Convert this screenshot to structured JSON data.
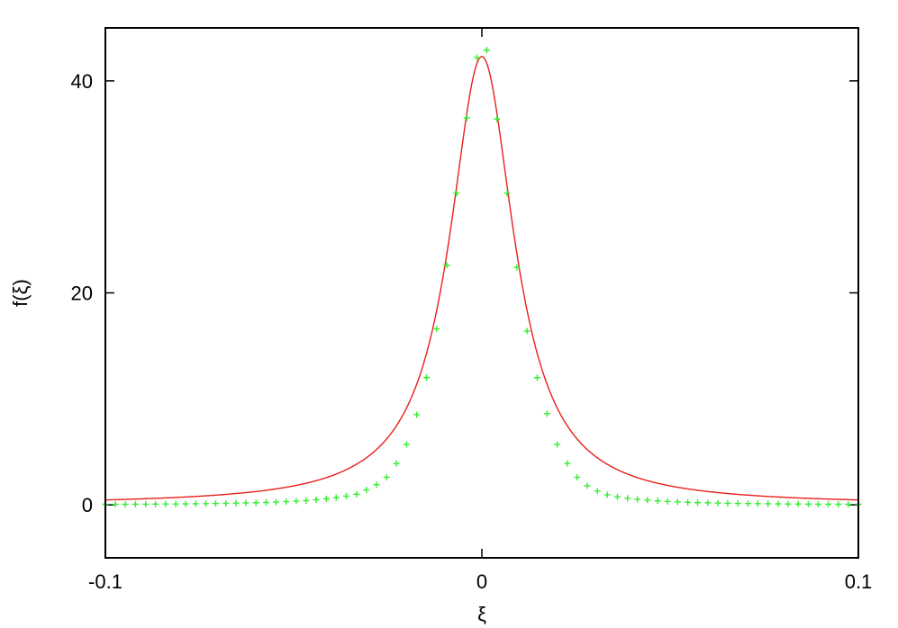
{
  "chart_data": {
    "type": "line",
    "title": "",
    "xlabel": "ξ",
    "ylabel": "f(ξ)",
    "xlim": [
      -0.1,
      0.1
    ],
    "ylim": [
      -5,
      45
    ],
    "x_ticks": [
      {
        "value": -0.1,
        "label": "-0.1"
      },
      {
        "value": 0,
        "label": "0"
      },
      {
        "value": 0.1,
        "label": "0.1"
      }
    ],
    "y_ticks": [
      {
        "value": 0,
        "label": "0"
      },
      {
        "value": 20,
        "label": "20"
      },
      {
        "value": 40,
        "label": "40"
      }
    ],
    "grid": false,
    "legend": "none",
    "series": [
      {
        "kind": "curve",
        "color": "#e8201b",
        "peak": 42.3,
        "width": 0.0105,
        "x_range": [
          -0.1,
          0.1
        ]
      },
      {
        "kind": "points",
        "marker": "plus",
        "color": "#33ee33",
        "points": [
          [
            -0.1,
            0.05
          ],
          [
            -0.0973,
            0.05
          ],
          [
            -0.0947,
            0.05
          ],
          [
            -0.092,
            0.06
          ],
          [
            -0.0893,
            0.06
          ],
          [
            -0.0867,
            0.07
          ],
          [
            -0.084,
            0.08
          ],
          [
            -0.0813,
            0.08
          ],
          [
            -0.0787,
            0.09
          ],
          [
            -0.076,
            0.1
          ],
          [
            -0.0733,
            0.11
          ],
          [
            -0.0707,
            0.13
          ],
          [
            -0.068,
            0.14
          ],
          [
            -0.0653,
            0.16
          ],
          [
            -0.0627,
            0.18
          ],
          [
            -0.06,
            0.2
          ],
          [
            -0.0573,
            0.23
          ],
          [
            -0.0547,
            0.26
          ],
          [
            -0.052,
            0.3
          ],
          [
            -0.0493,
            0.35
          ],
          [
            -0.0467,
            0.4
          ],
          [
            -0.044,
            0.48
          ],
          [
            -0.0413,
            0.57
          ],
          [
            -0.0387,
            0.68
          ],
          [
            -0.036,
            0.82
          ],
          [
            -0.0333,
            1.0
          ],
          [
            -0.0307,
            1.4
          ],
          [
            -0.028,
            1.9
          ],
          [
            -0.0253,
            2.6
          ],
          [
            -0.0227,
            3.9
          ],
          [
            -0.02,
            5.7
          ],
          [
            -0.0173,
            8.5
          ],
          [
            -0.0147,
            12.0
          ],
          [
            -0.012,
            16.6
          ],
          [
            -0.0093,
            22.6
          ],
          [
            -0.0067,
            29.4
          ],
          [
            -0.004,
            36.5
          ],
          [
            -0.0013,
            42.2
          ],
          [
            0.0013,
            42.9
          ],
          [
            0.004,
            36.4
          ],
          [
            0.0067,
            29.4
          ],
          [
            0.0093,
            22.4
          ],
          [
            0.012,
            16.4
          ],
          [
            0.0147,
            12.0
          ],
          [
            0.0173,
            8.6
          ],
          [
            0.02,
            5.7
          ],
          [
            0.0227,
            3.9
          ],
          [
            0.0253,
            2.6
          ],
          [
            0.028,
            1.8
          ],
          [
            0.0307,
            1.3
          ],
          [
            0.0333,
            0.95
          ],
          [
            0.036,
            0.75
          ],
          [
            0.0387,
            0.62
          ],
          [
            0.0413,
            0.52
          ],
          [
            0.044,
            0.44
          ],
          [
            0.0467,
            0.37
          ],
          [
            0.0493,
            0.32
          ],
          [
            0.052,
            0.28
          ],
          [
            0.0547,
            0.24
          ],
          [
            0.0573,
            0.21
          ],
          [
            0.06,
            0.19
          ],
          [
            0.0627,
            0.17
          ],
          [
            0.0653,
            0.15
          ],
          [
            0.068,
            0.13
          ],
          [
            0.0707,
            0.12
          ],
          [
            0.0733,
            0.11
          ],
          [
            0.076,
            0.1
          ],
          [
            0.0787,
            0.09
          ],
          [
            0.0813,
            0.08
          ],
          [
            0.084,
            0.08
          ],
          [
            0.0867,
            0.07
          ],
          [
            0.0893,
            0.06
          ],
          [
            0.092,
            0.06
          ],
          [
            0.0947,
            0.05
          ],
          [
            0.0973,
            0.05
          ],
          [
            0.1,
            0.05
          ]
        ]
      }
    ]
  }
}
